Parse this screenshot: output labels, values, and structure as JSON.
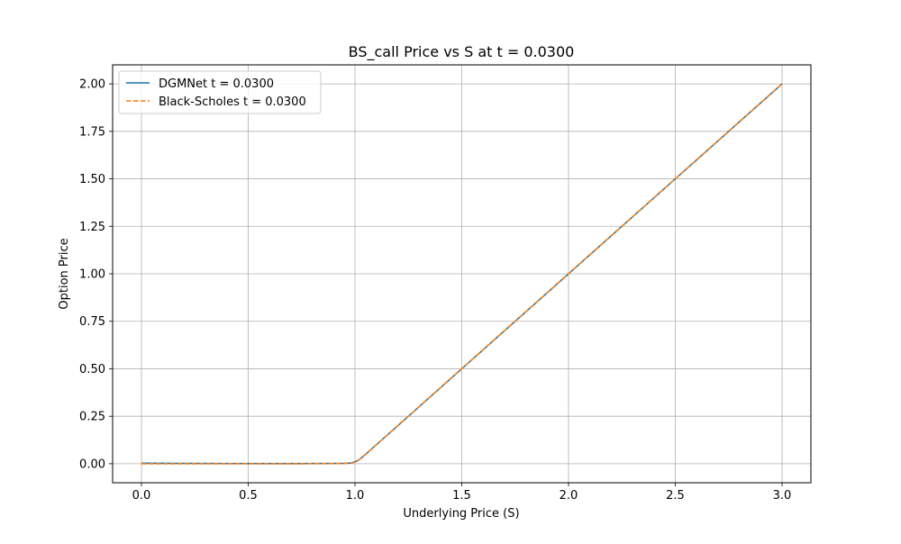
{
  "chart_data": {
    "type": "line",
    "title": "BS_call Price vs S at t = 0.0300",
    "xlabel": "Underlying Price (S)",
    "ylabel": "Option Price",
    "xlim": [
      -0.135,
      3.135
    ],
    "ylim": [
      -0.1,
      2.1
    ],
    "xticks": [
      0.0,
      0.5,
      1.0,
      1.5,
      2.0,
      2.5,
      3.0
    ],
    "xtick_labels": [
      "0.0",
      "0.5",
      "1.0",
      "1.5",
      "2.0",
      "2.5",
      "3.0"
    ],
    "yticks": [
      0.0,
      0.25,
      0.5,
      0.75,
      1.0,
      1.25,
      1.5,
      1.75,
      2.0
    ],
    "ytick_labels": [
      "0.00",
      "0.25",
      "0.50",
      "0.75",
      "1.00",
      "1.25",
      "1.50",
      "1.75",
      "2.00"
    ],
    "grid": true,
    "legend_position": "upper-left",
    "series": [
      {
        "name": "DGMNet t = 0.0300",
        "color": "#1f77b4",
        "style": "solid",
        "x": [
          0.0,
          0.25,
          0.5,
          0.75,
          0.95,
          0.98,
          1.0,
          1.02,
          1.05,
          1.1,
          1.5,
          2.0,
          2.5,
          3.0
        ],
        "y": [
          0.003,
          0.002,
          0.001,
          0.001,
          0.002,
          0.004,
          0.01,
          0.022,
          0.05,
          0.1,
          0.5,
          1.0,
          1.5,
          2.0
        ]
      },
      {
        "name": "Black-Scholes t = 0.0300",
        "color": "#ff7f0e",
        "style": "dashed",
        "x": [
          0.0,
          0.25,
          0.5,
          0.75,
          0.95,
          0.98,
          1.0,
          1.02,
          1.05,
          1.1,
          1.5,
          2.0,
          2.5,
          3.0
        ],
        "y": [
          0.0,
          0.0,
          0.0,
          0.0,
          0.001,
          0.003,
          0.008,
          0.022,
          0.05,
          0.1,
          0.5,
          1.0,
          1.5,
          2.0
        ]
      }
    ]
  }
}
